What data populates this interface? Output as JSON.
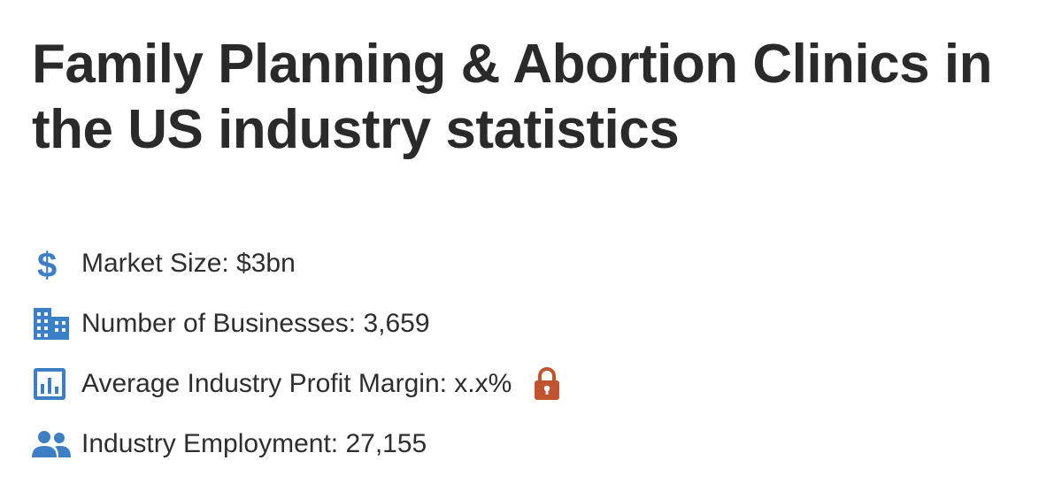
{
  "page": {
    "title": "Family Planning & Abortion Clinics in the US industry statistics"
  },
  "stats": [
    {
      "icon": "dollar-icon",
      "label": "Market Size: $3bn"
    },
    {
      "icon": "building-icon",
      "label": "Number of Businesses: 3,659"
    },
    {
      "icon": "bar-chart-icon",
      "label": "Average Industry Profit Margin: x.x%",
      "locked": true
    },
    {
      "icon": "people-icon",
      "label": "Industry Employment: 27,155"
    }
  ],
  "colors": {
    "icon_blue": "#3d7fc4",
    "lock_orange": "#c0542e",
    "text": "#2e2e2e"
  }
}
